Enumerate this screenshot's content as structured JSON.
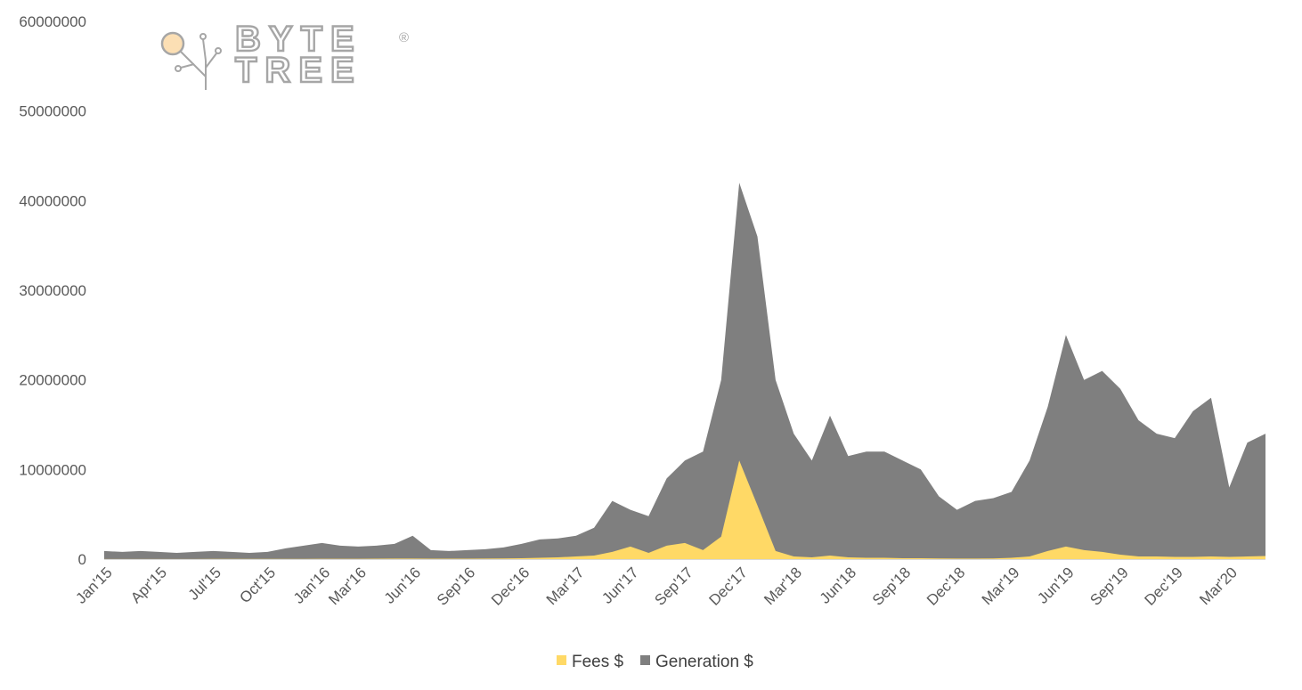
{
  "logo": {
    "line1": "BYTE",
    "line2": "TREE",
    "registered": "®",
    "accent": "#fcdfb4",
    "color": "#a6a6a6"
  },
  "chart_data": {
    "type": "area",
    "stacked": false,
    "title": "",
    "xlabel": "",
    "ylabel": "",
    "ylim": [
      0,
      60000000
    ],
    "y_ticks": [
      "0",
      "10000000",
      "20000000",
      "30000000",
      "40000000",
      "50000000",
      "60000000"
    ],
    "y_tick_values": [
      0,
      10000000,
      20000000,
      30000000,
      40000000,
      50000000,
      60000000
    ],
    "x_ticks": [
      "Jan'15",
      "Apr'15",
      "Jul'15",
      "Oct'15",
      "Jan'16",
      "Mar'16",
      "Jun'16",
      "Sep'16",
      "Dec'16",
      "Mar'17",
      "Jun'17",
      "Sep'17",
      "Dec'17",
      "Mar'18",
      "Jun'18",
      "Sep'18",
      "Dec'18",
      "Mar'19",
      "Jun'19",
      "Sep'19",
      "Dec'19",
      "Mar'20"
    ],
    "x_tick_dates": [
      "2015-01",
      "2015-04",
      "2015-07",
      "2015-10",
      "2016-01",
      "2016-03",
      "2016-06",
      "2016-09",
      "2016-12",
      "2017-03",
      "2017-06",
      "2017-09",
      "2017-12",
      "2018-03",
      "2018-06",
      "2018-09",
      "2018-12",
      "2019-03",
      "2019-06",
      "2019-09",
      "2019-12",
      "2020-03"
    ],
    "x_range": [
      "2015-01",
      "2020-05"
    ],
    "legend": "bottom",
    "grid": false,
    "series": [
      {
        "name": "Generation $",
        "color": "#7f7f7f",
        "x": [
          "2015-01",
          "2015-02",
          "2015-03",
          "2015-04",
          "2015-05",
          "2015-06",
          "2015-07",
          "2015-08",
          "2015-09",
          "2015-10",
          "2015-11",
          "2015-12",
          "2016-01",
          "2016-02",
          "2016-03",
          "2016-04",
          "2016-05",
          "2016-06",
          "2016-07",
          "2016-08",
          "2016-09",
          "2016-10",
          "2016-11",
          "2016-12",
          "2017-01",
          "2017-02",
          "2017-03",
          "2017-04",
          "2017-05",
          "2017-06",
          "2017-07",
          "2017-08",
          "2017-09",
          "2017-10",
          "2017-11",
          "2017-12",
          "2018-01",
          "2018-02",
          "2018-03",
          "2018-04",
          "2018-05",
          "2018-06",
          "2018-07",
          "2018-08",
          "2018-09",
          "2018-10",
          "2018-11",
          "2018-12",
          "2019-01",
          "2019-02",
          "2019-03",
          "2019-04",
          "2019-05",
          "2019-06",
          "2019-07",
          "2019-08",
          "2019-09",
          "2019-10",
          "2019-11",
          "2019-12",
          "2020-01",
          "2020-02",
          "2020-03",
          "2020-04",
          "2020-05"
        ],
        "values": [
          900000,
          800000,
          900000,
          800000,
          700000,
          800000,
          900000,
          800000,
          700000,
          800000,
          1200000,
          1500000,
          1800000,
          1500000,
          1400000,
          1500000,
          1700000,
          2600000,
          1000000,
          900000,
          1000000,
          1100000,
          1300000,
          1700000,
          2200000,
          2300000,
          2600000,
          3500000,
          6500000,
          5500000,
          4800000,
          9000000,
          11000000,
          12000000,
          20000000,
          42000000,
          36000000,
          20000000,
          14000000,
          11000000,
          16000000,
          11500000,
          12000000,
          12000000,
          11000000,
          10000000,
          7000000,
          5500000,
          6500000,
          6800000,
          7500000,
          11000000,
          17000000,
          25000000,
          20000000,
          21000000,
          19000000,
          15500000,
          14000000,
          13500000,
          16500000,
          18000000,
          8000000,
          13000000,
          14000000
        ]
      },
      {
        "name": "Fees $",
        "color": "#ffd966",
        "x": [
          "2015-01",
          "2015-02",
          "2015-03",
          "2015-04",
          "2015-05",
          "2015-06",
          "2015-07",
          "2015-08",
          "2015-09",
          "2015-10",
          "2015-11",
          "2015-12",
          "2016-01",
          "2016-02",
          "2016-03",
          "2016-04",
          "2016-05",
          "2016-06",
          "2016-07",
          "2016-08",
          "2016-09",
          "2016-10",
          "2016-11",
          "2016-12",
          "2017-01",
          "2017-02",
          "2017-03",
          "2017-04",
          "2017-05",
          "2017-06",
          "2017-07",
          "2017-08",
          "2017-09",
          "2017-10",
          "2017-11",
          "2017-12",
          "2018-01",
          "2018-02",
          "2018-03",
          "2018-04",
          "2018-05",
          "2018-06",
          "2018-07",
          "2018-08",
          "2018-09",
          "2018-10",
          "2018-11",
          "2018-12",
          "2019-01",
          "2019-02",
          "2019-03",
          "2019-04",
          "2019-05",
          "2019-06",
          "2019-07",
          "2019-08",
          "2019-09",
          "2019-10",
          "2019-11",
          "2019-12",
          "2020-01",
          "2020-02",
          "2020-03",
          "2020-04",
          "2020-05"
        ],
        "values": [
          10000,
          10000,
          10000,
          10000,
          10000,
          10000,
          20000,
          20000,
          20000,
          20000,
          20000,
          30000,
          40000,
          40000,
          40000,
          50000,
          60000,
          60000,
          50000,
          50000,
          50000,
          60000,
          80000,
          100000,
          150000,
          200000,
          300000,
          400000,
          800000,
          1400000,
          700000,
          1500000,
          1800000,
          1000000,
          2500000,
          11000000,
          6000000,
          900000,
          300000,
          200000,
          400000,
          200000,
          150000,
          150000,
          100000,
          100000,
          80000,
          60000,
          60000,
          80000,
          150000,
          300000,
          900000,
          1400000,
          1000000,
          800000,
          500000,
          300000,
          300000,
          250000,
          250000,
          300000,
          250000,
          300000,
          350000
        ]
      }
    ]
  }
}
